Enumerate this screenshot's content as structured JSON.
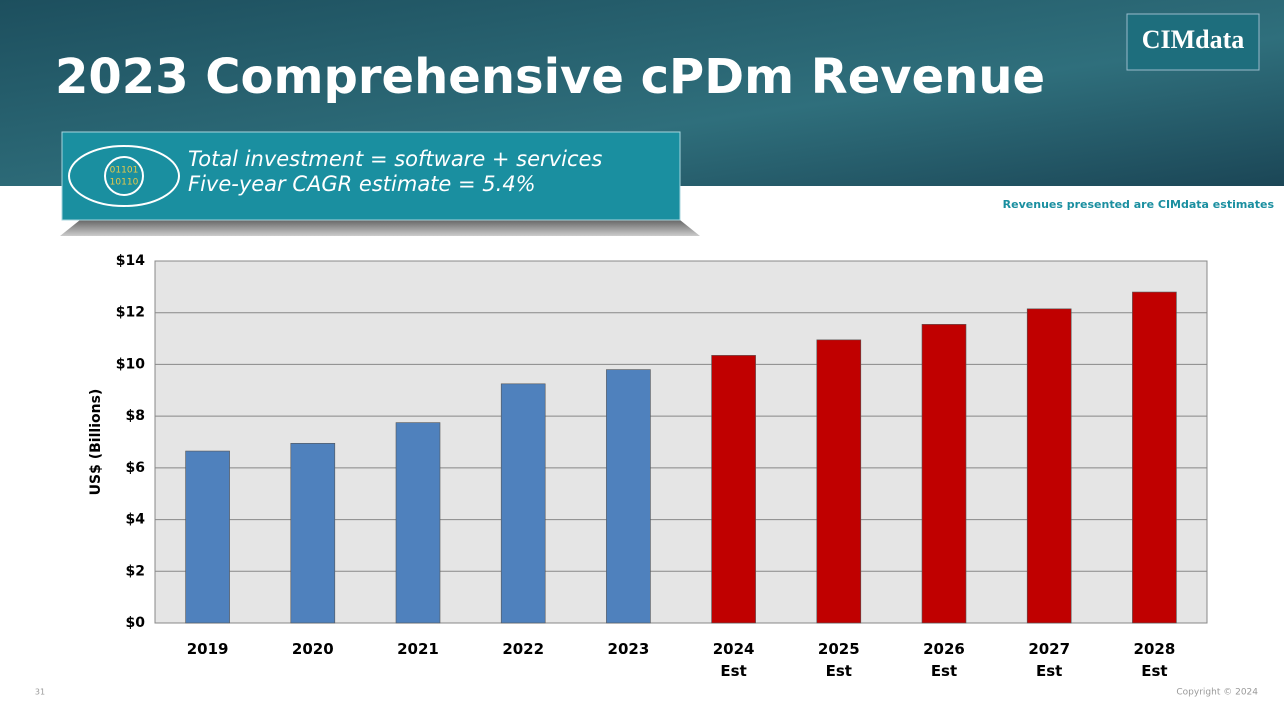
{
  "header": {
    "title": "2023 Comprehensive cPDm Revenue",
    "logo": "CIMdata"
  },
  "callout": {
    "icon_text": [
      "01101",
      "10110"
    ],
    "lines": [
      "Total investment = software + services",
      "Five-year CAGR estimate = 5.4%"
    ]
  },
  "note": "Revenues presented are CIMdata estimates",
  "chart_data": {
    "type": "bar",
    "y_label": "US$ (Billions)",
    "categories": [
      "2019",
      "2020",
      "2021",
      "2022",
      "2023",
      "2024 Est",
      "2025 Est",
      "2026 Est",
      "2027 Est",
      "2028 Est"
    ],
    "values": [
      6.65,
      6.95,
      7.75,
      9.25,
      9.8,
      10.35,
      10.95,
      11.55,
      12.15,
      12.8
    ],
    "colors": [
      "#4f81bd",
      "#4f81bd",
      "#4f81bd",
      "#4f81bd",
      "#4f81bd",
      "#c00000",
      "#c00000",
      "#c00000",
      "#c00000",
      "#c00000"
    ],
    "ylim": [
      0,
      14
    ],
    "yticks": [
      {
        "value": 0,
        "label": "$0"
      },
      {
        "value": 2,
        "label": "$2"
      },
      {
        "value": 4,
        "label": "$4"
      },
      {
        "value": 6,
        "label": "$6"
      },
      {
        "value": 8,
        "label": "$8"
      },
      {
        "value": 10,
        "label": "$10"
      },
      {
        "value": 12,
        "label": "$12"
      },
      {
        "value": 14,
        "label": "$14"
      }
    ],
    "grid": true
  },
  "footer": {
    "page": "31",
    "copyright": "Copyright © 2024"
  }
}
